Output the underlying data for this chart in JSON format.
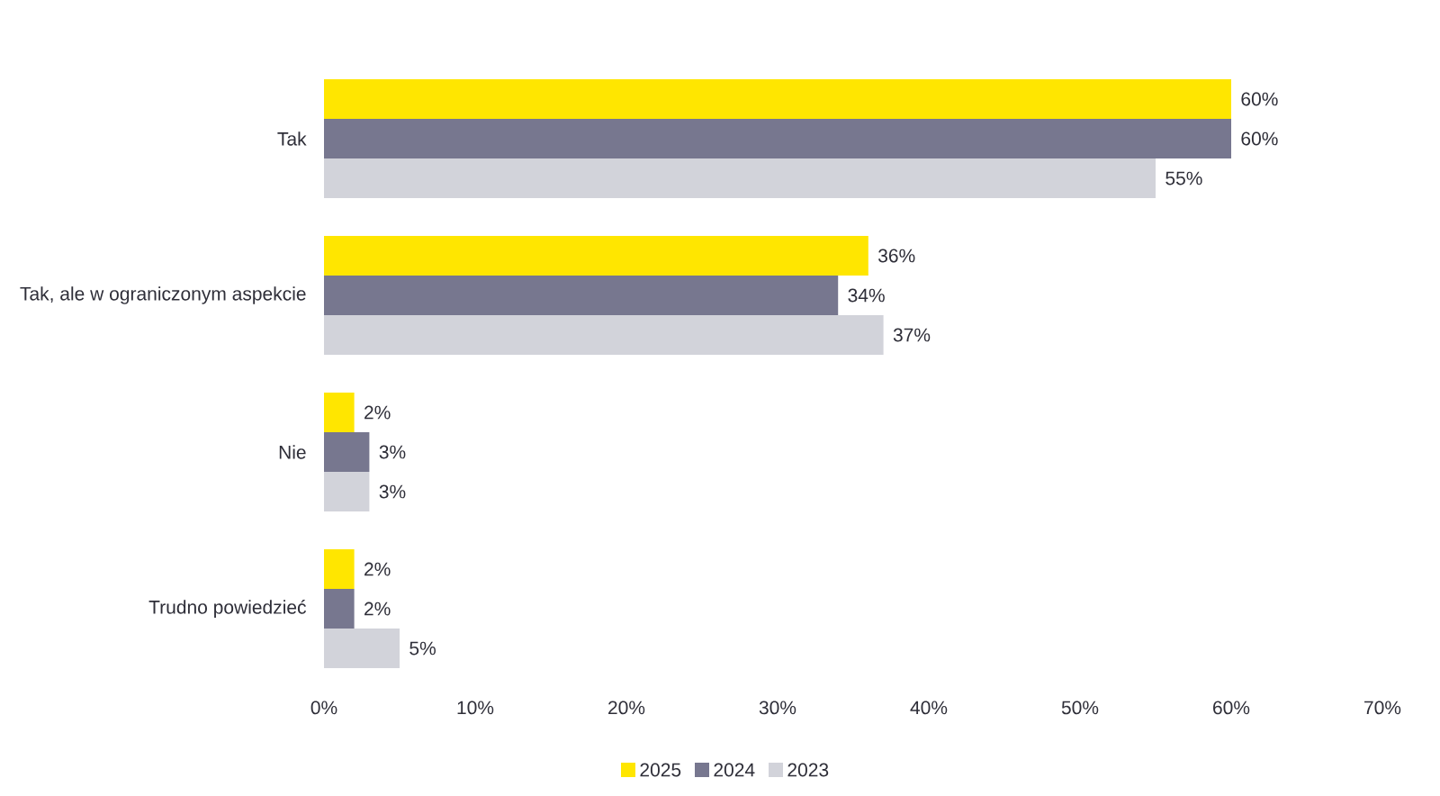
{
  "chart_data": {
    "type": "bar",
    "orientation": "horizontal",
    "categories": [
      "Tak",
      "Tak, ale w ograniczonym aspekcie",
      "Nie",
      "Trudno powiedzieć"
    ],
    "series": [
      {
        "name": "2025",
        "color": "#ffe600",
        "values": [
          60,
          36,
          2,
          2
        ],
        "value_labels": [
          "60%",
          "36%",
          "2%",
          "2%"
        ]
      },
      {
        "name": "2024",
        "color": "#77778f",
        "values": [
          60,
          34,
          3,
          2
        ],
        "value_labels": [
          "60%",
          "34%",
          "3%",
          "2%"
        ]
      },
      {
        "name": "2023",
        "color": "#d2d3da",
        "values": [
          55,
          37,
          3,
          5
        ],
        "value_labels": [
          "55%",
          "37%",
          "3%",
          "5%"
        ]
      }
    ],
    "xlim": [
      0,
      70
    ],
    "xticks": [
      {
        "value": 0,
        "label": "0%"
      },
      {
        "value": 10,
        "label": "10%"
      },
      {
        "value": 20,
        "label": "20%"
      },
      {
        "value": 30,
        "label": "30%"
      },
      {
        "value": 40,
        "label": "40%"
      },
      {
        "value": 50,
        "label": "50%"
      },
      {
        "value": 60,
        "label": "60%"
      },
      {
        "value": 70,
        "label": "70%"
      }
    ],
    "grid": false,
    "legend": "bottom"
  }
}
